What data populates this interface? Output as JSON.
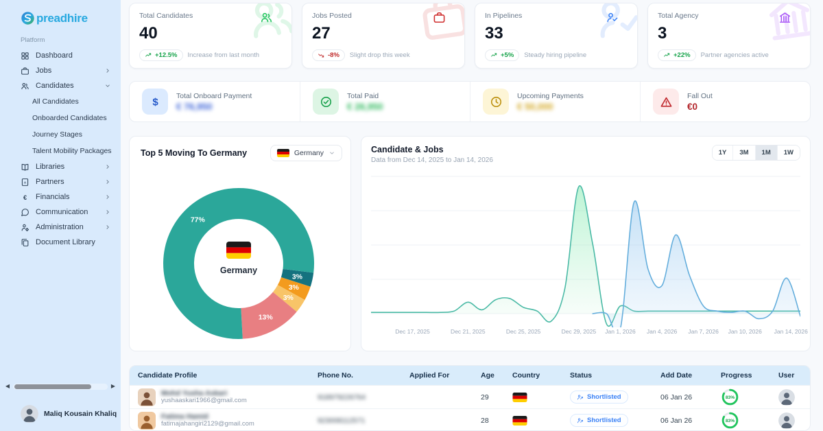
{
  "brand": {
    "name": "Spreadhire",
    "logo_icon": "globe-logo-icon",
    "wordmark_rest": "preadhire"
  },
  "colors": {
    "sidebar_bg": "#d9eafc",
    "logo_blue": "#28a9e0",
    "accent_teal": "#2BA79A",
    "positive_green": "#16a34a",
    "negative_red": "#c02a2a",
    "status_blue": "#3b82f6",
    "table_header_bg": "#d9ecfb",
    "progress_green": "#22c55e"
  },
  "sidebar": {
    "section_label": "Platform",
    "items": [
      {
        "label": "Dashboard",
        "icon": "dashboard-icon",
        "chevron": null
      },
      {
        "label": "Jobs",
        "icon": "briefcase-icon",
        "chevron": "right"
      },
      {
        "label": "Candidates",
        "icon": "users-icon",
        "chevron": "down",
        "expanded": true,
        "children": [
          "All Candidates",
          "Onboarded Candidates",
          "Journey Stages",
          "Talent Mobility Packages"
        ]
      },
      {
        "label": "Libraries",
        "icon": "book-icon",
        "chevron": "right"
      },
      {
        "label": "Partners",
        "icon": "partner-file-icon",
        "chevron": "right"
      },
      {
        "label": "Financials",
        "icon": "euro-icon",
        "chevron": "right"
      },
      {
        "label": "Communication",
        "icon": "chat-icon",
        "chevron": "right"
      },
      {
        "label": "Administration",
        "icon": "admin-icon",
        "chevron": "right"
      },
      {
        "label": "Document Library",
        "icon": "document-icon",
        "chevron": null
      }
    ],
    "user": {
      "name": "Maliq Kousain Khaliq",
      "selector_icon": "selector-icon"
    }
  },
  "stat_cards": [
    {
      "title": "Total Candidates",
      "value": "40",
      "badge": "+12.5%",
      "trend": "up",
      "note": "Increase from last month",
      "icon": "users-icon",
      "color": "#22c55e"
    },
    {
      "title": "Jobs Posted",
      "value": "27",
      "badge": "-8%",
      "trend": "down",
      "note": "Slight drop this week",
      "icon": "briefcase-icon",
      "color": "#d03030"
    },
    {
      "title": "In Pipelines",
      "value": "33",
      "badge": "+5%",
      "trend": "up",
      "note": "Steady hiring pipeline",
      "icon": "user-check-icon",
      "color": "#3b82f6"
    },
    {
      "title": "Total Agency",
      "value": "3",
      "badge": "+22%",
      "trend": "up",
      "note": "Partner agencies active",
      "icon": "bank-icon",
      "color": "#a855f7"
    }
  ],
  "payments": [
    {
      "label": "Total Onboard Payment",
      "value": "€ 76,950",
      "blurred": true,
      "icon": "dollar-icon",
      "icon_bg": "#dbeafe",
      "icon_color": "#2458c9",
      "value_color": "#3b63d8"
    },
    {
      "label": "Total Paid",
      "value": "€ 26,950",
      "blurred": true,
      "icon": "check-circle-icon",
      "icon_bg": "#ddf5e4",
      "icon_color": "#17a04a",
      "value_color": "#2cb85b"
    },
    {
      "label": "Upcoming Payments",
      "value": "€ 50,000",
      "blurred": true,
      "icon": "clock-icon",
      "icon_bg": "#fdf5d6",
      "icon_color": "#bb8e0a",
      "value_color": "#d2a51c"
    },
    {
      "label": "Fall Out",
      "value": "€0",
      "blurred": false,
      "icon": "alert-icon",
      "icon_bg": "#fdeaea",
      "icon_color": "#c0262c",
      "value_color": "#b3252b"
    }
  ],
  "donut_card": {
    "title": "Top 5 Moving To Germany",
    "dropdown": {
      "label": "Germany",
      "flag": "germany-flag-icon",
      "chevron": "chevron-down-icon"
    }
  },
  "trend_card": {
    "title": "Candidate & Jobs",
    "subtitle": "Data from Dec 14, 2025 to Jan 14, 2026",
    "ranges": [
      "1Y",
      "3M",
      "1M",
      "1W"
    ],
    "active_range": "1M"
  },
  "chart_data": [
    {
      "type": "pie",
      "title": "Top 5 Moving To Germany",
      "donut": true,
      "center": {
        "flag": "germany-flag-icon",
        "label": "Germany"
      },
      "slices": [
        {
          "label": "3%",
          "value": 3,
          "color": "#15727F"
        },
        {
          "label": "3%",
          "value": 3,
          "color": "#F39B1E"
        },
        {
          "label": "3%",
          "value": 3,
          "color": "#F8C468"
        },
        {
          "label": "13%",
          "value": 13,
          "color": "#E87F82"
        },
        {
          "label": "77%",
          "value": 77,
          "color": "#2BA79A"
        }
      ],
      "layout": {
        "start_angle_deg": 97,
        "legend": "none"
      }
    },
    {
      "type": "area",
      "title": "Candidate & Jobs",
      "x_unit": "day",
      "x_start": "Dec 14, 2025",
      "x_end": "Jan 14, 2026",
      "tick_labels": [
        "Dec 17, 2025",
        "Dec 21, 2025",
        "Dec 25, 2025",
        "Dec 29, 2025",
        "Jan 1, 2026",
        "Jan 4, 2026",
        "Jan 7, 2026",
        "Jan 10, 2026",
        "Jan 14, 2026"
      ],
      "tick_day_index": [
        3,
        7,
        11,
        15,
        18,
        21,
        24,
        27,
        31
      ],
      "ylim": [
        -15,
        112
      ],
      "grid": true,
      "legend": "none",
      "series": [
        {
          "name": "Candidates",
          "stroke": "#49B9A5",
          "fill_from": "rgba(134,235,178,0.55)",
          "fill_to": "rgba(160,235,190,0.04)",
          "draw_from_index": 0,
          "values": [
            1,
            1,
            1,
            1,
            1,
            1,
            2,
            9,
            3,
            11,
            12,
            5,
            2,
            -6,
            20,
            100,
            55,
            -8,
            6,
            2,
            2,
            2,
            2,
            2,
            2,
            2,
            2,
            2,
            2,
            2,
            2,
            2
          ]
        },
        {
          "name": "Jobs",
          "stroke": "#63ADDC",
          "fill_from": "rgba(148,199,238,0.55)",
          "fill_to": "rgba(170,210,245,0.10)",
          "draw_from_index": 16,
          "values": [
            0,
            0,
            0,
            0,
            0,
            0,
            0,
            0,
            0,
            0,
            0,
            0,
            0,
            0,
            0,
            0,
            0,
            0,
            -12,
            88,
            35,
            22,
            62,
            30,
            6,
            2,
            1,
            2,
            -4,
            2,
            28,
            -2
          ]
        }
      ]
    }
  ],
  "table": {
    "columns": [
      "Candidate Profile",
      "Phone No.",
      "Applied For",
      "Age",
      "Country",
      "Status",
      "Add Date",
      "Progress",
      "User"
    ],
    "rows": [
      {
        "name": "Mohd Yusha Askari",
        "name_blurred": true,
        "email": "yushaaskari1966@gmail.com",
        "phone": "918979226764",
        "phone_blurred": true,
        "applied_for": "",
        "age": "29",
        "country": "Germany",
        "status": "Shortlisted",
        "add_date": "06 Jan 26",
        "progress_pct": 83,
        "progress_label": "83%"
      },
      {
        "name": "Fatima Hamid",
        "name_blurred": true,
        "email": "fatimajahangiri2129@gmail.com",
        "phone": "923008112571",
        "phone_blurred": true,
        "applied_for": "",
        "age": "28",
        "country": "Germany",
        "status": "Shortlisted",
        "add_date": "06 Jan 26",
        "progress_pct": 83,
        "progress_label": "83%"
      }
    ]
  }
}
